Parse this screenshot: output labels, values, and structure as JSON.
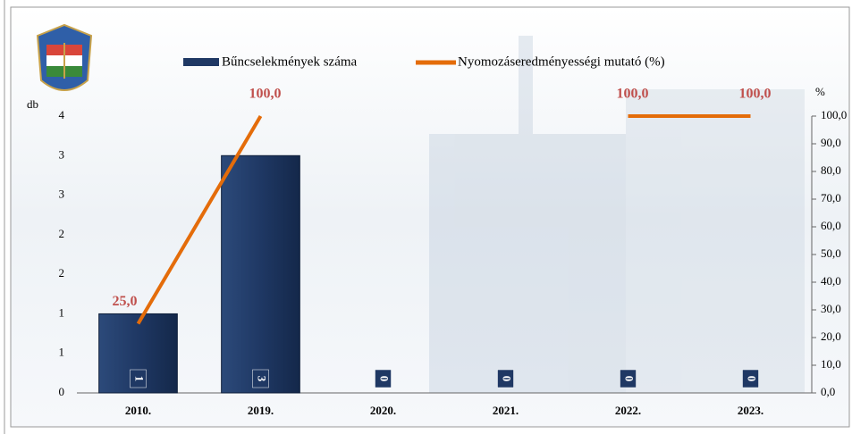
{
  "chart_data": {
    "type": "bar_line",
    "categories": [
      "2010.",
      "2019.",
      "2020.",
      "2021.",
      "2022.",
      "2023."
    ],
    "series": [
      {
        "name": "Bűncselekmények száma",
        "color": "#1f3864",
        "values": [
          1,
          3,
          0,
          0,
          0,
          0
        ]
      },
      {
        "name": "Nyomozáseredményességi mutató (%)",
        "color": "#e46c0a",
        "axis": "y2",
        "values": [
          25,
          100,
          null,
          null,
          100,
          100
        ],
        "value_labels": [
          "25,0",
          "100,0",
          null,
          null,
          "100,0",
          "100,0"
        ]
      }
    ],
    "ylabel": "db",
    "y2label": "%",
    "ylim": [
      0,
      3.5
    ],
    "yticks": [
      0,
      {
        "value": 0.5,
        "label": "1"
      },
      1,
      {
        "value": 1.5,
        "label": "2"
      },
      2,
      {
        "value": 2.5,
        "label": "3"
      },
      3,
      {
        "value": 3.5,
        "label": "4"
      }
    ],
    "y2lim": [
      0,
      100
    ],
    "y2ticks": [
      {
        "value": 0,
        "label": "0,0"
      },
      {
        "value": 10,
        "label": "10,0"
      },
      {
        "value": 20,
        "label": "20,0"
      },
      {
        "value": 30,
        "label": "30,0"
      },
      {
        "value": 40,
        "label": "40,0"
      },
      {
        "value": 50,
        "label": "50,0"
      },
      {
        "value": 60,
        "label": "60,0"
      },
      {
        "value": 70,
        "label": "70,0"
      },
      {
        "value": 80,
        "label": "80,0"
      },
      {
        "value": 90,
        "label": "90,0"
      },
      {
        "value": 100,
        "label": "100,0"
      }
    ],
    "label_color": "#c0504d"
  }
}
